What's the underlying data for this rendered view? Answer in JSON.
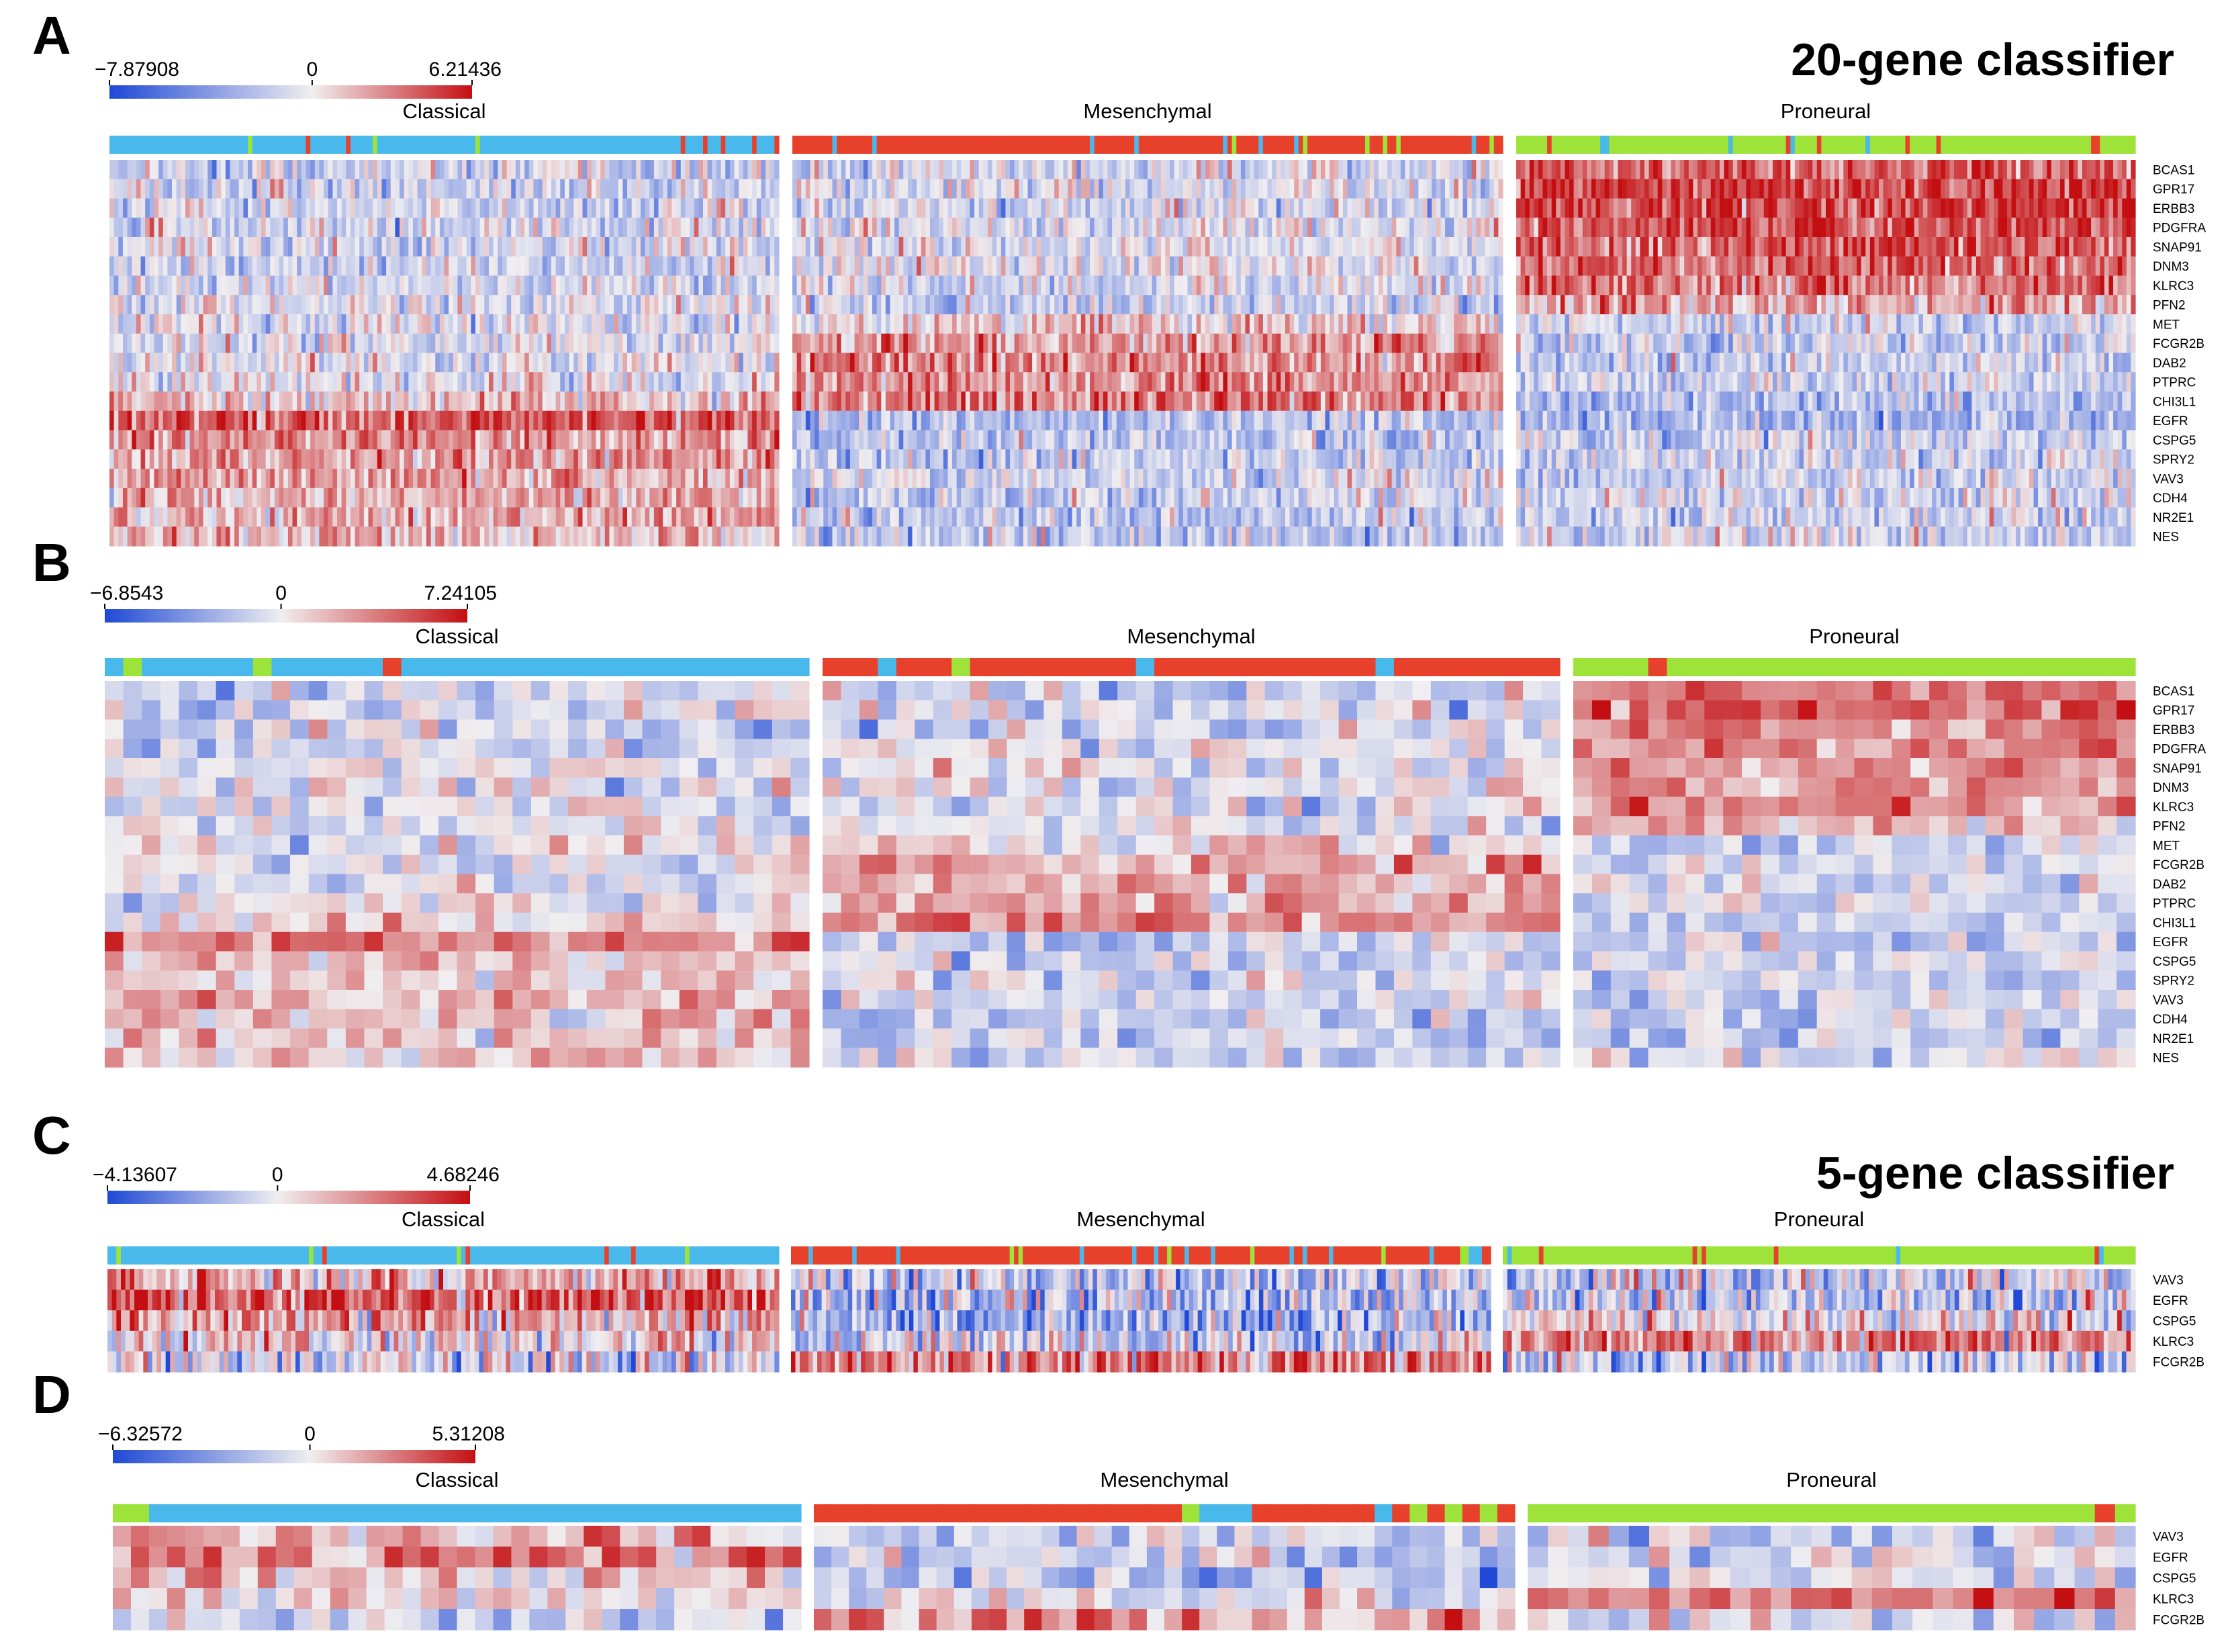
{
  "figure_titles": {
    "top": "20-gene classifier",
    "bottom": "5-gene classifier"
  },
  "colors": {
    "low": "#1f49d6",
    "mid": "#f0eef0",
    "high": "#c40f12",
    "classical": "#49b9ec",
    "mesenchymal": "#e8412b",
    "proneural": "#9ee33a"
  },
  "chart_data": [
    {
      "panel": "A",
      "type": "heatmap",
      "colorbar": {
        "min": -7.87908,
        "mid": 0,
        "max": 6.21436,
        "min_label": "−7.87908",
        "mid_label": "0",
        "max_label": "6.21436"
      },
      "groups": [
        "Classical",
        "Mesenchymal",
        "Proneural"
      ],
      "samples_per_group": [
        150,
        160,
        140
      ],
      "rows": [
        "BCAS1",
        "GPR17",
        "ERBB3",
        "PDGFRA",
        "SNAP91",
        "DNM3",
        "KLRC3",
        "PFN2",
        "MET",
        "FCGR2B",
        "DAB2",
        "PTPRC",
        "CHI3L1",
        "EGFR",
        "CSPG5",
        "SPRY2",
        "VAV3",
        "CDH4",
        "NR2E1",
        "NES"
      ],
      "mean_by_group": [
        [
          -1.2,
          -0.8,
          3.5
        ],
        [
          -1.0,
          -0.6,
          4.0
        ],
        [
          -1.0,
          -0.7,
          3.8
        ],
        [
          -0.9,
          -0.5,
          3.6
        ],
        [
          -0.6,
          -0.4,
          3.2
        ],
        [
          -0.8,
          -0.3,
          3.0
        ],
        [
          -0.7,
          -0.5,
          2.8
        ],
        [
          -0.4,
          -1.2,
          1.8
        ],
        [
          -0.5,
          0.8,
          -0.9
        ],
        [
          -0.3,
          1.8,
          -1.4
        ],
        [
          -0.4,
          2.0,
          -1.2
        ],
        [
          -0.3,
          2.2,
          -1.0
        ],
        [
          1.0,
          2.6,
          -1.8
        ],
        [
          3.2,
          -1.8,
          -2.2
        ],
        [
          2.0,
          -1.6,
          -1.0
        ],
        [
          1.8,
          -1.2,
          -0.9
        ],
        [
          1.6,
          -1.0,
          -1.0
        ],
        [
          1.5,
          -1.3,
          -0.8
        ],
        [
          1.4,
          -1.4,
          -0.8
        ],
        [
          1.2,
          -1.6,
          -0.9
        ]
      ]
    },
    {
      "panel": "B",
      "type": "heatmap",
      "colorbar": {
        "min": -6.8543,
        "mid": 0,
        "max": 7.24105,
        "min_label": "−6.8543",
        "mid_label": "0",
        "max_label": "7.24105"
      },
      "groups": [
        "Classical",
        "Mesenchymal",
        "Proneural"
      ],
      "samples_per_group": [
        38,
        40,
        30
      ],
      "rows": [
        "BCAS1",
        "GPR17",
        "ERBB3",
        "PDGFRA",
        "SNAP91",
        "DNM3",
        "KLRC3",
        "PFN2",
        "MET",
        "FCGR2B",
        "DAB2",
        "PTPRC",
        "CHI3L1",
        "EGFR",
        "CSPG5",
        "SPRY2",
        "VAV3",
        "CDH4",
        "NR2E1",
        "NES"
      ],
      "mean_by_group": [
        [
          -0.8,
          -0.6,
          2.5
        ],
        [
          -0.6,
          -0.5,
          3.5
        ],
        [
          -0.7,
          -0.6,
          3.0
        ],
        [
          -0.8,
          -0.4,
          2.8
        ],
        [
          -0.3,
          -0.3,
          2.6
        ],
        [
          -0.5,
          -0.2,
          2.4
        ],
        [
          -0.3,
          -0.4,
          2.6
        ],
        [
          -0.3,
          -0.8,
          1.4
        ],
        [
          -0.4,
          0.6,
          -0.7
        ],
        [
          -0.2,
          1.8,
          -1.0
        ],
        [
          -0.3,
          1.6,
          -0.8
        ],
        [
          -0.2,
          2.0,
          -0.7
        ],
        [
          0.6,
          3.0,
          -1.4
        ],
        [
          2.8,
          -1.2,
          -1.2
        ],
        [
          1.2,
          -1.0,
          -0.6
        ],
        [
          1.2,
          -0.8,
          -0.8
        ],
        [
          1.4,
          -0.6,
          -0.8
        ],
        [
          1.2,
          -1.0,
          -0.9
        ],
        [
          1.0,
          -1.0,
          -0.8
        ],
        [
          0.8,
          -1.2,
          -0.5
        ]
      ]
    },
    {
      "panel": "C",
      "type": "heatmap",
      "colorbar": {
        "min": -4.13607,
        "mid": 0,
        "max": 4.68246,
        "min_label": "−4.13607",
        "mid_label": "0",
        "max_label": "4.68246"
      },
      "groups": [
        "Classical",
        "Mesenchymal",
        "Proneural"
      ],
      "samples_per_group": [
        150,
        160,
        140
      ],
      "rows": [
        "VAV3",
        "EGFR",
        "CSPG5",
        "KLRC3",
        "FCGR2B"
      ],
      "mean_by_group": [
        [
          1.2,
          -0.6,
          -0.5
        ],
        [
          2.6,
          -1.0,
          -0.8
        ],
        [
          1.2,
          -1.2,
          0.2
        ],
        [
          0.4,
          -0.6,
          2.0
        ],
        [
          -0.2,
          1.8,
          -0.6
        ]
      ]
    },
    {
      "panel": "D",
      "type": "heatmap",
      "colorbar": {
        "min": -6.32572,
        "mid": 0,
        "max": 5.31208,
        "min_label": "−6.32572",
        "mid_label": "0",
        "max_label": "5.31208"
      },
      "groups": [
        "Classical",
        "Mesenchymal",
        "Proneural"
      ],
      "samples_per_group": [
        38,
        40,
        30
      ],
      "rows": [
        "VAV3",
        "EGFR",
        "CSPG5",
        "KLRC3",
        "FCGR2B"
      ],
      "mean_by_group": [
        [
          1.0,
          -0.5,
          -0.6
        ],
        [
          2.0,
          -1.0,
          -0.8
        ],
        [
          0.6,
          -1.4,
          -0.4
        ],
        [
          0.2,
          -0.8,
          2.2
        ],
        [
          -0.6,
          1.8,
          -0.7
        ]
      ]
    }
  ]
}
